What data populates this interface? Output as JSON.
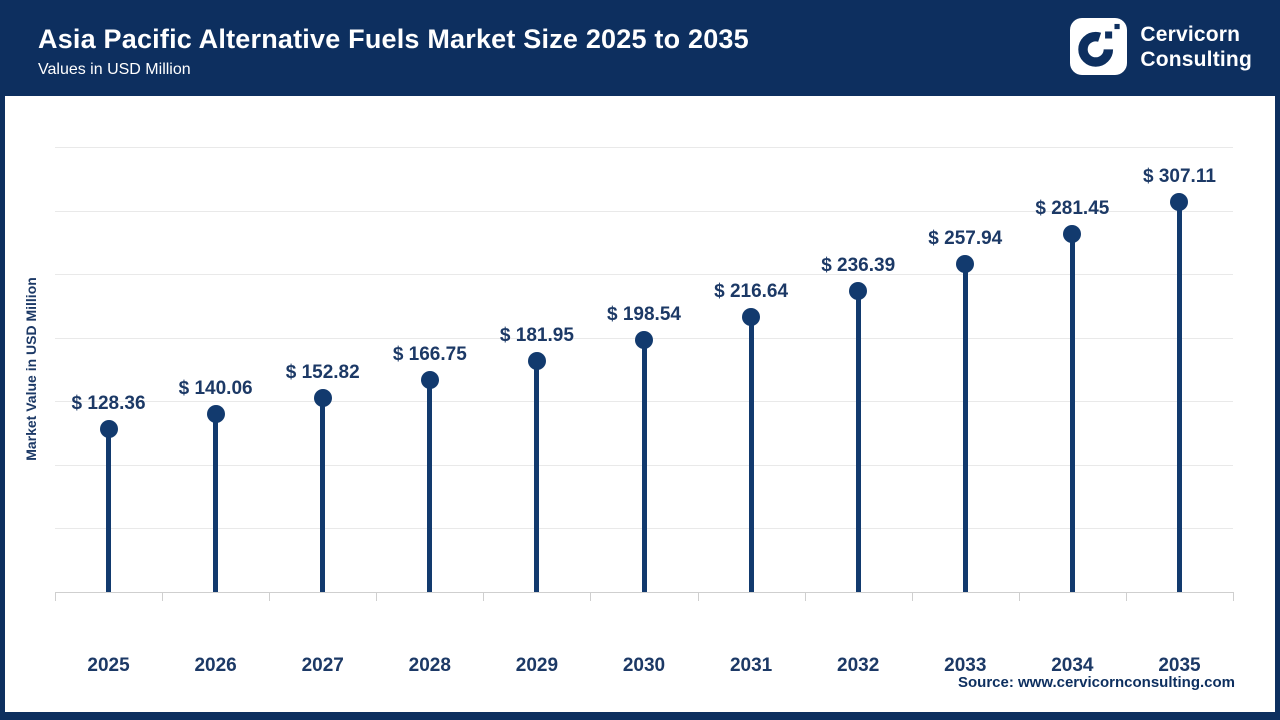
{
  "header": {
    "title": "Asia Pacific Alternative Fuels Market Size 2025 to 2035",
    "subtitle": "Values in USD Million",
    "brand": {
      "line1": "Cervicorn",
      "line2": "Consulting"
    }
  },
  "colors": {
    "navy": "#0d2f5f",
    "stem": "#123a6e",
    "label_text": "#1c3966",
    "gridline": "#e9e9e9",
    "axis_line": "#cfcfcf",
    "background": "#ffffff"
  },
  "chart_data": {
    "type": "bar",
    "style": "lollipop",
    "title": "Asia Pacific Alternative Fuels Market Size 2025 to 2035",
    "subtitle": "Values in USD Million",
    "categories": [
      "2025",
      "2026",
      "2027",
      "2028",
      "2029",
      "2030",
      "2031",
      "2032",
      "2033",
      "2034",
      "2035"
    ],
    "values": [
      128.36,
      140.06,
      152.82,
      166.75,
      181.95,
      198.54,
      216.64,
      236.39,
      257.94,
      281.45,
      307.11
    ],
    "value_prefix": "$ ",
    "xlabel": "",
    "ylabel": "Market Value in USD Million",
    "ylim": [
      0,
      350
    ],
    "grid_step": 50,
    "grid": "horizontal-only",
    "legend": "none",
    "y_tick_labels_visible": false
  },
  "footer": {
    "source": "Source: www.cervicornconsulting.com"
  }
}
